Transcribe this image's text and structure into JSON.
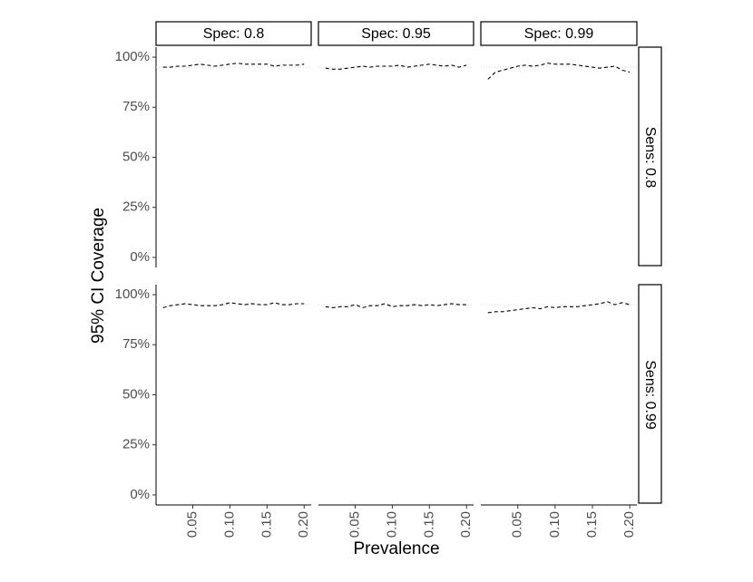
{
  "chart_data": {
    "type": "line",
    "x_label": "Prevalence",
    "y_label": "95% CI Coverage",
    "columns": [
      "Spec: 0.8",
      "Spec: 0.95",
      "Spec: 0.99"
    ],
    "rows": [
      "Sens: 0.8",
      "Sens: 0.99"
    ],
    "x": [
      0.01,
      0.02,
      0.03,
      0.04,
      0.05,
      0.06,
      0.07,
      0.08,
      0.09,
      0.1,
      0.11,
      0.12,
      0.13,
      0.14,
      0.15,
      0.16,
      0.17,
      0.18,
      0.19,
      0.2
    ],
    "xlim": [
      0.0005,
      0.2095
    ],
    "xticks": [
      0.05,
      {
        "value": 0.1,
        "label": "0.10"
      },
      0.15,
      {
        "value": 0.2,
        "label": "0.20"
      }
    ],
    "ylim": [
      -5,
      105
    ],
    "yticks": [
      {
        "value": 0,
        "label": "0%"
      },
      {
        "value": 25,
        "label": "25%"
      },
      {
        "value": 50,
        "label": "50%"
      },
      {
        "value": 75,
        "label": "75%"
      },
      {
        "value": 100,
        "label": "100%"
      }
    ],
    "reference": 95,
    "reference_color": "#d9d9d9",
    "color": "#000000",
    "panels": [
      {
        "values": [
          95,
          95,
          95.5,
          95.5,
          96,
          96.5,
          96,
          95.5,
          96,
          96.5,
          97,
          96.5,
          96.5,
          96.5,
          96.5,
          95.5,
          96,
          96,
          96,
          96.5
        ]
      },
      {
        "values": [
          94.5,
          94,
          94,
          94.5,
          95,
          95.5,
          95,
          95.5,
          95.5,
          95.5,
          96,
          95,
          95.5,
          96,
          96.5,
          96,
          95.5,
          96,
          95,
          96
        ]
      },
      {
        "values": [
          89,
          92.5,
          93.5,
          94.5,
          95.5,
          96,
          95.5,
          96,
          97,
          96.5,
          96.5,
          96.5,
          96,
          95.5,
          95,
          94.5,
          95,
          95.5,
          93.5,
          92.5
        ]
      },
      {
        "values": [
          93.5,
          94.5,
          95,
          95.5,
          95,
          94.5,
          94.5,
          94.5,
          95,
          96,
          95.5,
          95,
          95.5,
          95,
          95,
          96,
          95,
          95,
          95.5,
          95.5
        ]
      },
      {
        "values": [
          94,
          93.5,
          94,
          94,
          95,
          93.5,
          94.5,
          94.5,
          95.5,
          94,
          94.5,
          94.5,
          95,
          94.5,
          95,
          94.5,
          95,
          95.5,
          95,
          95
        ]
      },
      {
        "values": [
          91,
          91.5,
          91.5,
          92,
          92.5,
          93,
          93.5,
          93,
          94,
          93.5,
          94,
          94,
          94,
          94.5,
          95,
          95.5,
          96.5,
          95,
          96,
          95
        ]
      }
    ]
  }
}
